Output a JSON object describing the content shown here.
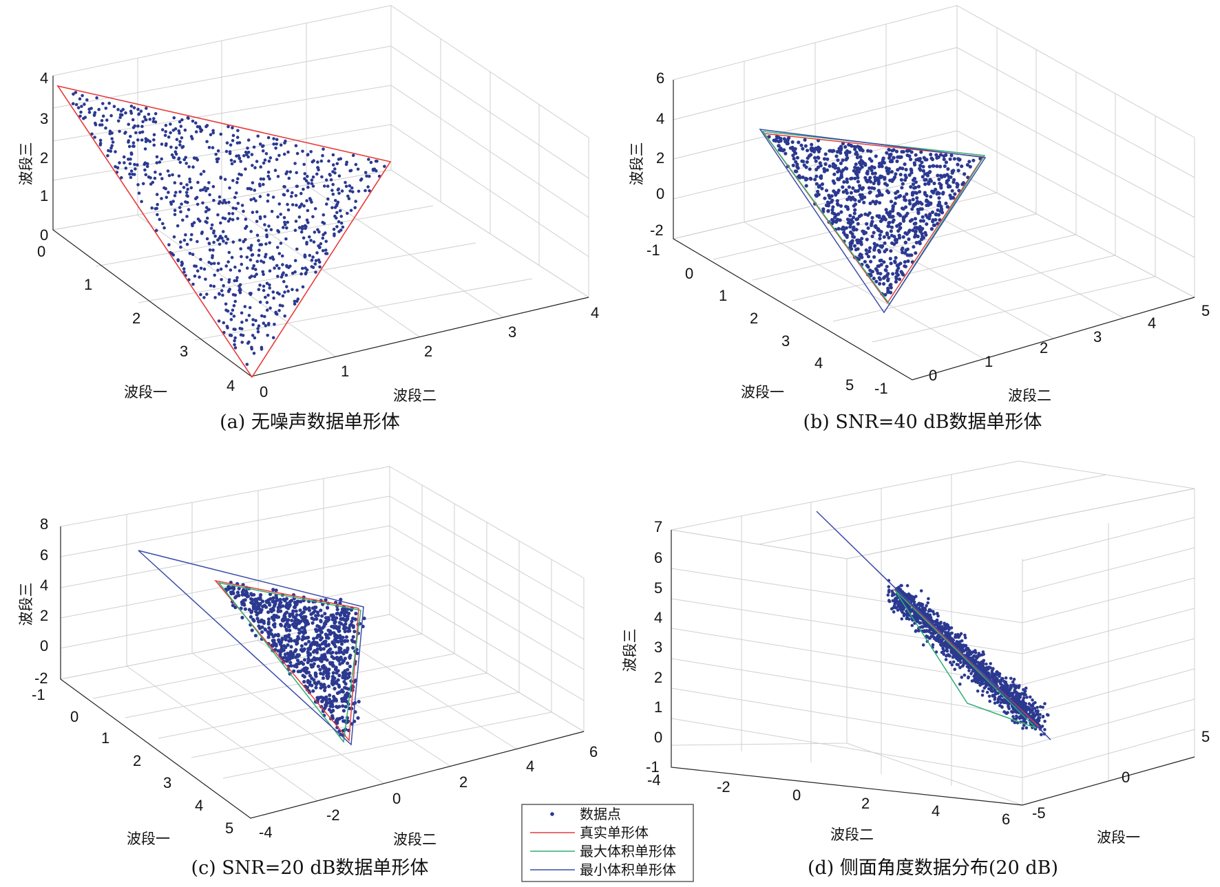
{
  "colors": {
    "points": "#2b3990",
    "true_simplex": "#e8393a",
    "max_volume_simplex": "#2fae74",
    "min_volume_simplex": "#3a4ca8",
    "grid": "#cfcfcf"
  },
  "legend": {
    "entries": [
      "数据点",
      "真实单形体",
      "最大体积单形体",
      "最小体积单形体"
    ]
  },
  "chart_data": [
    {
      "type": "scatter",
      "caption": "(a) 无噪声数据单形体",
      "xlabel": "波段一",
      "ylabel": "波段二",
      "zlabel": "波段三",
      "xlim": [
        0,
        4
      ],
      "ylim": [
        0,
        4
      ],
      "zlim": [
        0,
        4
      ],
      "xticks": [
        "0",
        "1",
        "2",
        "3",
        "4"
      ],
      "yticks": [
        "0",
        "1",
        "2",
        "3",
        "4"
      ],
      "zticks": [
        "0",
        "1",
        "2",
        "3",
        "4"
      ],
      "grid": true,
      "simplex_vertices": {
        "true": [
          [
            4,
            0,
            0
          ],
          [
            0,
            4,
            0
          ],
          [
            0,
            0,
            4
          ]
        ]
      },
      "noise": "none",
      "point_count": 900
    },
    {
      "type": "scatter",
      "caption": "(b) SNR=40 dB数据单形体",
      "xlabel": "波段一",
      "ylabel": "波段二",
      "zlabel": "波段三",
      "xlim": [
        -1,
        5
      ],
      "ylim": [
        -1,
        5
      ],
      "zlim": [
        -2,
        6
      ],
      "xticks": [
        "-1",
        "0",
        "1",
        "2",
        "3",
        "4",
        "5"
      ],
      "yticks": [
        "-1",
        "0",
        "1",
        "2",
        "3",
        "4",
        "5"
      ],
      "zticks": [
        "-2",
        "0",
        "2",
        "4",
        "6"
      ],
      "grid": true,
      "noise": "SNR=40 dB"
    },
    {
      "type": "scatter",
      "caption": "(c) SNR=20 dB数据单形体",
      "xlabel": "波段一",
      "ylabel": "波段二",
      "zlabel": "波段三",
      "xlim": [
        -1,
        5
      ],
      "ylim": [
        -4,
        6
      ],
      "zlim": [
        -2,
        8
      ],
      "xticks": [
        "-1",
        "0",
        "1",
        "2",
        "3",
        "4",
        "5"
      ],
      "yticks": [
        "-4",
        "-2",
        "0",
        "2",
        "4",
        "6"
      ],
      "zticks": [
        "-2",
        "0",
        "2",
        "4",
        "6",
        "8"
      ],
      "grid": true,
      "noise": "SNR=20 dB"
    },
    {
      "type": "scatter",
      "caption": "(d) 侧面角度数据分布(20 dB)",
      "xlabel": "波段二",
      "ylabel": "波段一",
      "zlabel": "波段三",
      "xlim": [
        -4,
        6
      ],
      "ylim": [
        -5,
        5
      ],
      "zlim": [
        -1,
        7
      ],
      "xticks": [
        "-4",
        "-2",
        "0",
        "2",
        "4",
        "6"
      ],
      "yticks": [
        "-5",
        "0",
        "5"
      ],
      "zticks": [
        "-1",
        "0",
        "1",
        "2",
        "3",
        "4",
        "5",
        "6",
        "7"
      ],
      "grid": true,
      "noise": "SNR=20 dB"
    }
  ]
}
